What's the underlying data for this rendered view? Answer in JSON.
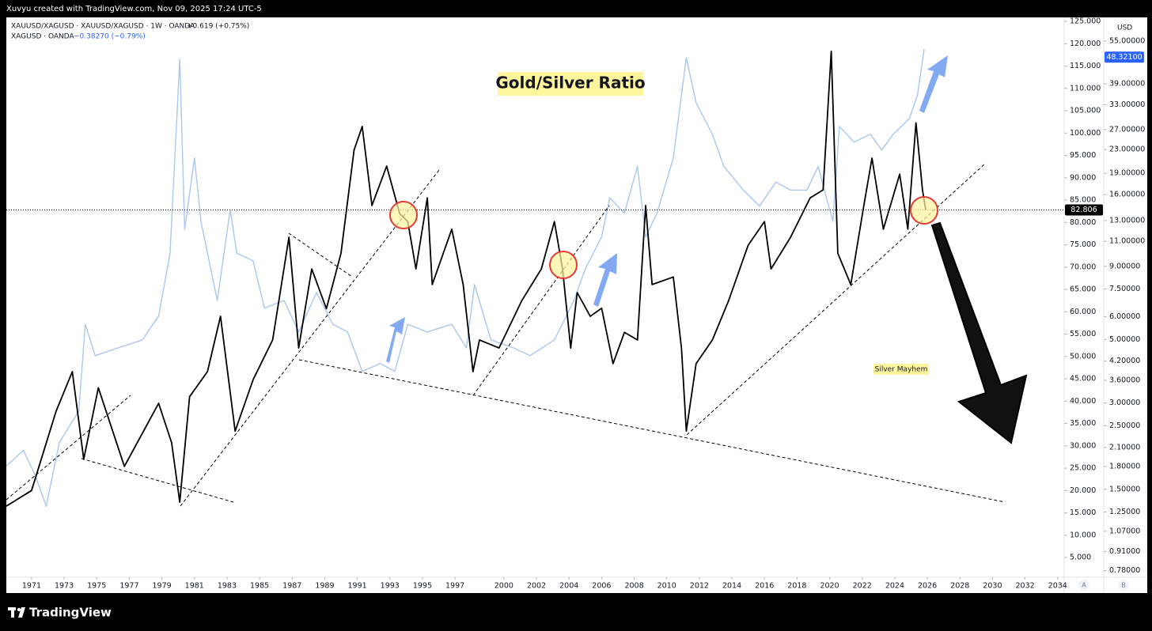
{
  "chart_data": {
    "type": "line",
    "header": "Xuvyu created with TradingView.com, Nov 09, 2025 17:24 UTC-5",
    "title": "Gold/Silver Ratio",
    "annotation": "Silver Mayhem",
    "brand": "TradingView",
    "y2_unit": "USD",
    "scale_buttons": [
      "A",
      "B"
    ],
    "series": [
      {
        "name": "XAUUSD/XAGUSD · XAUUSD/XAGUSD · 1W · OANDA",
        "change": "+0.619 (+0.75%)",
        "color": "#000000",
        "last_value": 82.806,
        "x": [
          1969.45,
          1971,
          1972.5,
          1973.5,
          1974.2,
          1975.1,
          1976.7,
          1978.8,
          1979.6,
          1980.1,
          1980.7,
          1981.8,
          1982.6,
          1983.5,
          1984.6,
          1985.8,
          1986.8,
          1987.4,
          1988.2,
          1989.1,
          1990,
          1990.8,
          1991.3,
          1991.9,
          1992.8,
          1993.6,
          1994.1,
          1994.6,
          1995.3,
          1995.6,
          1996.8,
          1997.5,
          1998.1,
          1998.5,
          1999.7,
          2001.1,
          2002.3,
          2003.1,
          2003.6,
          2004.1,
          2004.5,
          2005.3,
          2006,
          2006.7,
          2007.4,
          2008.2,
          2008.7,
          2009.1,
          2010.4,
          2010.9,
          2011.2,
          2011.8,
          2012.8,
          2013.8,
          2015,
          2016,
          2016.4,
          2017.6,
          2018.8,
          2019.6,
          2020.1,
          2020.5,
          2021.3,
          2022.1,
          2022.6,
          2023.3,
          2024.3,
          2024.8,
          2025.3,
          2025.7,
          2025.9
        ],
        "values": [
          16.5,
          20,
          37.7,
          46.6,
          27,
          43,
          25.4,
          39.5,
          30.7,
          17.4,
          41,
          46.6,
          59,
          33.3,
          44.8,
          53.7,
          76.7,
          51.9,
          69.6,
          60.7,
          73.1,
          96.2,
          101.5,
          83.8,
          92.6,
          82,
          80.2,
          69.6,
          85.5,
          66.1,
          78.5,
          66.1,
          46.6,
          53.7,
          51.9,
          62.5,
          69.6,
          80.2,
          69.6,
          51.9,
          64.3,
          59,
          60.8,
          48.4,
          55.4,
          53.7,
          83.8,
          66.1,
          67.8,
          51.9,
          33.3,
          48.4,
          53.7,
          62.5,
          74.9,
          80.2,
          69.6,
          76.7,
          85.5,
          87.3,
          118.3,
          73.1,
          66.1,
          83.8,
          94.4,
          78.5,
          90.8,
          78.5,
          102.3,
          87.3,
          82.8
        ]
      },
      {
        "name": "XAGUSD · OANDA",
        "change": "−0.38270 (−0.79%)",
        "color": "#a9c7ef",
        "axis": "y2",
        "last_value": {
          "value": 48.321,
          "label": "48.32100"
        },
        "x": [
          1969.4,
          1970.5,
          1971.2,
          1971.9,
          1972.7,
          1973.9,
          1974.3,
          1974.9,
          1976.3,
          1977.8,
          1978.8,
          1979.5,
          1980.1,
          1980.4,
          1981,
          1981.4,
          1982.4,
          1983.2,
          1983.6,
          1984.6,
          1985.3,
          1986.5,
          1987.4,
          1988.5,
          1989.5,
          1990.4,
          1991.3,
          1992.4,
          1993.3,
          1994.1,
          1995.3,
          1996.8,
          1997.7,
          1998.2,
          1999.2,
          2000.6,
          2001.6,
          2003.1,
          2004.3,
          2005,
          2006,
          2006.5,
          2007.4,
          2008.2,
          2008.7,
          2009.4,
          2010.4,
          2011.2,
          2011.8,
          2012.8,
          2013.5,
          2014.7,
          2015.7,
          2016.7,
          2017.6,
          2018.6,
          2019.3,
          2019.8,
          2020.2,
          2020.6,
          2021.5,
          2022.5,
          2023.2,
          2023.9,
          2024.9,
          2025.4,
          2025.8
        ],
        "values": [
          1.8,
          2.05,
          1.69,
          1.31,
          2.18,
          2.81,
          5.65,
          4.39,
          4.67,
          4.98,
          6.03,
          10,
          47.5,
          12.1,
          21.5,
          12.9,
          6.84,
          14.2,
          10,
          9.4,
          6.43,
          6.84,
          5.31,
          7.29,
          5.65,
          5.31,
          3.87,
          4.12,
          3.87,
          5.65,
          5.31,
          5.65,
          4.67,
          7.77,
          4.98,
          4.67,
          4.39,
          4.98,
          6.84,
          8.83,
          11.4,
          15.6,
          13.8,
          20.1,
          11.4,
          13.8,
          21.5,
          48.1,
          33.5,
          26,
          20.1,
          16.6,
          14.6,
          17.7,
          16.6,
          16.6,
          20.1,
          15.6,
          12.9,
          27.7,
          24.4,
          26,
          22.9,
          26,
          29.5,
          35.7,
          51.6
        ]
      }
    ],
    "xlim": [
      1969.45,
      2034.4
    ],
    "xticks": [
      1971,
      1973,
      1975,
      1977,
      1979,
      1981,
      1983,
      1985,
      1987,
      1989,
      1991,
      1993,
      1995,
      1997,
      2000,
      2002,
      2004,
      2006,
      2008,
      2010,
      2012,
      2014,
      2016,
      2018,
      2020,
      2022,
      2024,
      2026,
      2028,
      2030,
      2032,
      2034
    ],
    "ylim": [
      -2.6,
      125.9
    ],
    "yticks": [
      {
        "value": 5,
        "label": "5.000"
      },
      {
        "value": 10,
        "label": "10.000"
      },
      {
        "value": 15,
        "label": "15.000"
      },
      {
        "value": 20,
        "label": "20.000"
      },
      {
        "value": 25,
        "label": "25.000"
      },
      {
        "value": 30,
        "label": "30.000"
      },
      {
        "value": 35,
        "label": "35.000"
      },
      {
        "value": 40,
        "label": "40.000"
      },
      {
        "value": 45,
        "label": "45.000"
      },
      {
        "value": 50,
        "label": "50.000"
      },
      {
        "value": 55,
        "label": "55.000"
      },
      {
        "value": 60,
        "label": "60.000"
      },
      {
        "value": 65,
        "label": "65.000"
      },
      {
        "value": 70,
        "label": "70.000"
      },
      {
        "value": 75,
        "label": "75.000"
      },
      {
        "value": 80,
        "label": "80.000"
      },
      {
        "value": 85,
        "label": "85.000"
      },
      {
        "value": 90,
        "label": "90.000"
      },
      {
        "value": 95,
        "label": "95.000"
      },
      {
        "value": 100,
        "label": "100.000"
      },
      {
        "value": 105,
        "label": "105.000"
      },
      {
        "value": 110,
        "label": "110.000"
      },
      {
        "value": 115,
        "label": "115.000"
      },
      {
        "value": 120,
        "label": "120.000"
      },
      {
        "value": 125,
        "label": "125.000"
      }
    ],
    "y2lim": [
      0.66,
      66.5
    ],
    "y2log": true,
    "y2ticks": [
      {
        "value": 55,
        "label": "55.00000"
      },
      {
        "value": 39,
        "label": "39.00000"
      },
      {
        "value": 33,
        "label": "33.00000"
      },
      {
        "value": 27,
        "label": "27.00000"
      },
      {
        "value": 23,
        "label": "23.00000"
      },
      {
        "value": 19,
        "label": "19.00000"
      },
      {
        "value": 16,
        "label": "16.00000"
      },
      {
        "value": 13,
        "label": "13.00000"
      },
      {
        "value": 11,
        "label": "11.00000"
      },
      {
        "value": 9,
        "label": "9.00000"
      },
      {
        "value": 7.5,
        "label": "7.50000"
      },
      {
        "value": 6,
        "label": "6.00000"
      },
      {
        "value": 5,
        "label": "5.00000"
      },
      {
        "value": 4.2,
        "label": "4.20000"
      },
      {
        "value": 3.6,
        "label": "3.60000"
      },
      {
        "value": 3,
        "label": "3.00000"
      },
      {
        "value": 2.5,
        "label": "2.50000"
      },
      {
        "value": 2.1,
        "label": "2.10000"
      },
      {
        "value": 1.8,
        "label": "1.80000"
      },
      {
        "value": 1.5,
        "label": "1.50000"
      },
      {
        "value": 1.25,
        "label": "1.25000"
      },
      {
        "value": 1.07,
        "label": "1.07000"
      },
      {
        "value": 0.91,
        "label": "0.91000"
      },
      {
        "value": 0.78,
        "label": "0.78000"
      }
    ],
    "grid": false
  }
}
